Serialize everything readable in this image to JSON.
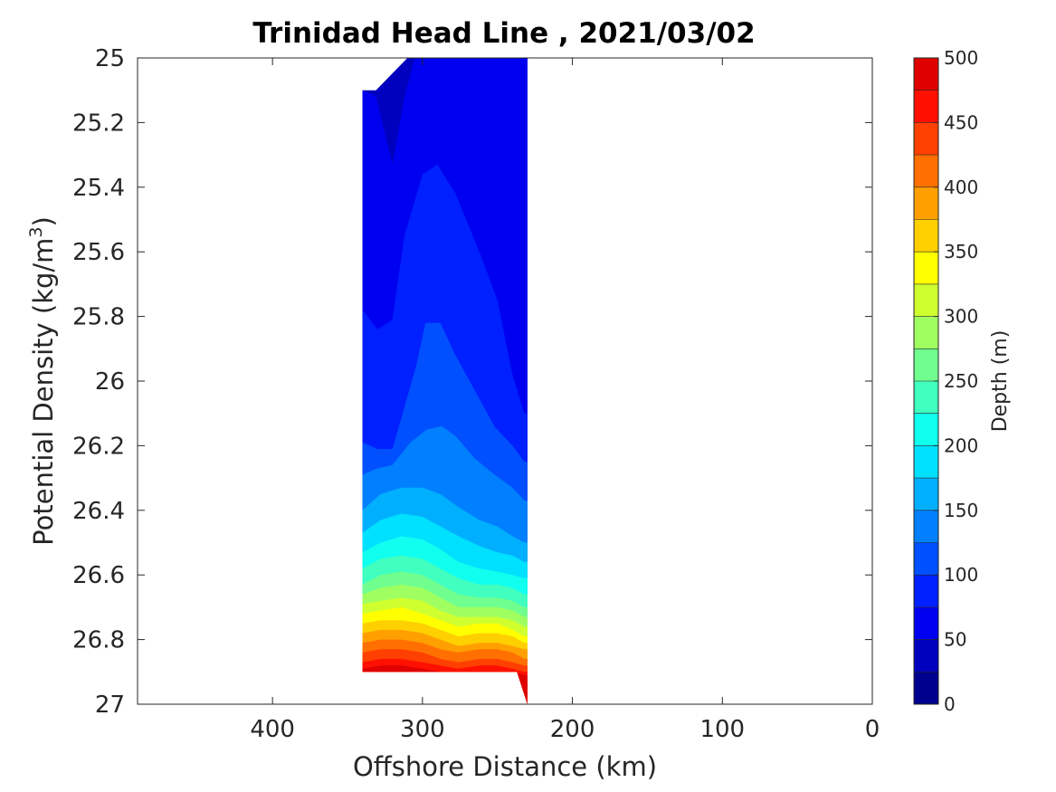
{
  "chart_data": {
    "type": "contour",
    "title": "Trinidad Head Line , 2021/03/02",
    "xlabel": "Offshore Distance (km)",
    "ylabel": "Potential Density (kg/m",
    "ylabel_sup": "3",
    "ylabel_end": ")",
    "xlim": [
      490,
      0
    ],
    "x_reversed": true,
    "ylim": [
      25,
      27
    ],
    "y_reversed": true,
    "x_ticks": [
      400,
      300,
      200,
      100,
      0
    ],
    "x_tick_labels": [
      "400",
      "300",
      "200",
      "100",
      "0"
    ],
    "y_ticks": [
      25,
      25.2,
      25.4,
      25.6,
      25.8,
      26,
      26.2,
      26.4,
      26.6,
      26.8,
      27
    ],
    "y_tick_labels": [
      "25",
      "25.2",
      "25.4",
      "25.6",
      "25.8",
      "26",
      "26.2",
      "26.4",
      "26.6",
      "26.8",
      "27"
    ],
    "grid": false,
    "colorbar": {
      "label": "Depth (m)",
      "colormap": "jet",
      "levels": [
        0,
        25,
        50,
        75,
        100,
        125,
        150,
        175,
        200,
        225,
        250,
        275,
        300,
        325,
        350,
        375,
        400,
        425,
        450,
        475,
        500
      ],
      "colors": [
        "#00008f",
        "#0000bf",
        "#0000f0",
        "#0020ff",
        "#0050ff",
        "#0080ff",
        "#00b0ff",
        "#00e0ff",
        "#10ffef",
        "#40ffbf",
        "#70ff8f",
        "#a0ff60",
        "#d0ff30",
        "#ffff00",
        "#ffd000",
        "#ffa000",
        "#ff7000",
        "#ff4000",
        "#ff1000",
        "#df0000",
        "#af0000"
      ],
      "tick_values": [
        0,
        50,
        100,
        150,
        200,
        250,
        300,
        350,
        400,
        450,
        500
      ],
      "tick_labels": [
        "0",
        "50",
        "100",
        "150",
        "200",
        "250",
        "300",
        "350",
        "400",
        "450",
        "500"
      ]
    },
    "data_extent": {
      "x_range_km": [
        230,
        340
      ],
      "sigma_range": [
        25,
        27
      ]
    },
    "depth_contours": [
      {
        "depth": 50,
        "points": [
          [
            340,
            25.1
          ],
          [
            331,
            25.12
          ],
          [
            320,
            25.33
          ],
          [
            312,
            25.12
          ],
          [
            305,
            25.0
          ]
        ]
      },
      {
        "depth": 75,
        "points": [
          [
            340,
            25.78
          ],
          [
            330,
            25.84
          ],
          [
            320,
            25.81
          ],
          [
            312,
            25.55
          ],
          [
            300,
            25.36
          ],
          [
            290,
            25.33
          ],
          [
            278,
            25.42
          ],
          [
            262,
            25.6
          ],
          [
            250,
            25.75
          ],
          [
            240,
            25.98
          ],
          [
            232,
            26.1
          ]
        ]
      },
      {
        "depth": 100,
        "points": [
          [
            340,
            26.19
          ],
          [
            330,
            26.21
          ],
          [
            320,
            26.21
          ],
          [
            312,
            26.08
          ],
          [
            304,
            25.95
          ],
          [
            298,
            25.82
          ],
          [
            288,
            25.82
          ],
          [
            278,
            25.92
          ],
          [
            265,
            26.03
          ],
          [
            252,
            26.14
          ],
          [
            240,
            26.2
          ],
          [
            232,
            26.25
          ]
        ]
      },
      {
        "depth": 125,
        "points": [
          [
            340,
            26.29
          ],
          [
            330,
            26.27
          ],
          [
            320,
            26.26
          ],
          [
            308,
            26.19
          ],
          [
            297,
            26.15
          ],
          [
            287,
            26.14
          ],
          [
            278,
            26.17
          ],
          [
            265,
            26.24
          ],
          [
            252,
            26.29
          ],
          [
            240,
            26.33
          ],
          [
            232,
            26.37
          ]
        ]
      },
      {
        "depth": 150,
        "points": [
          [
            340,
            26.4
          ],
          [
            328,
            26.35
          ],
          [
            314,
            26.33
          ],
          [
            300,
            26.33
          ],
          [
            288,
            26.35
          ],
          [
            276,
            26.39
          ],
          [
            262,
            26.43
          ],
          [
            250,
            26.45
          ],
          [
            240,
            26.48
          ],
          [
            232,
            26.5
          ]
        ]
      },
      {
        "depth": 175,
        "points": [
          [
            340,
            26.47
          ],
          [
            328,
            26.43
          ],
          [
            314,
            26.41
          ],
          [
            300,
            26.42
          ],
          [
            288,
            26.45
          ],
          [
            276,
            26.48
          ],
          [
            262,
            26.51
          ],
          [
            250,
            26.53
          ],
          [
            240,
            26.54
          ],
          [
            232,
            26.56
          ]
        ]
      },
      {
        "depth": 200,
        "points": [
          [
            340,
            26.53
          ],
          [
            328,
            26.5
          ],
          [
            314,
            26.48
          ],
          [
            300,
            26.49
          ],
          [
            288,
            26.52
          ],
          [
            276,
            26.56
          ],
          [
            262,
            26.58
          ],
          [
            250,
            26.59
          ],
          [
            240,
            26.6
          ],
          [
            232,
            26.61
          ]
        ]
      },
      {
        "depth": 225,
        "points": [
          [
            340,
            26.58
          ],
          [
            328,
            26.55
          ],
          [
            314,
            26.54
          ],
          [
            300,
            26.55
          ],
          [
            288,
            26.58
          ],
          [
            276,
            26.61
          ],
          [
            262,
            26.63
          ],
          [
            250,
            26.63
          ],
          [
            240,
            26.64
          ],
          [
            232,
            26.66
          ]
        ]
      },
      {
        "depth": 250,
        "points": [
          [
            340,
            26.63
          ],
          [
            328,
            26.6
          ],
          [
            314,
            26.59
          ],
          [
            300,
            26.6
          ],
          [
            288,
            26.63
          ],
          [
            276,
            26.66
          ],
          [
            262,
            26.67
          ],
          [
            250,
            26.67
          ],
          [
            240,
            26.68
          ],
          [
            232,
            26.7
          ]
        ]
      },
      {
        "depth": 275,
        "points": [
          [
            340,
            26.66
          ],
          [
            328,
            26.64
          ],
          [
            314,
            26.63
          ],
          [
            300,
            26.64
          ],
          [
            288,
            26.67
          ],
          [
            276,
            26.7
          ],
          [
            262,
            26.7
          ],
          [
            250,
            26.7
          ],
          [
            240,
            26.71
          ],
          [
            232,
            26.73
          ]
        ]
      },
      {
        "depth": 300,
        "points": [
          [
            340,
            26.69
          ],
          [
            328,
            26.68
          ],
          [
            314,
            26.67
          ],
          [
            300,
            26.68
          ],
          [
            288,
            26.71
          ],
          [
            276,
            26.73
          ],
          [
            262,
            26.73
          ],
          [
            250,
            26.73
          ],
          [
            240,
            26.74
          ],
          [
            232,
            26.76
          ]
        ]
      },
      {
        "depth": 325,
        "points": [
          [
            340,
            26.72
          ],
          [
            328,
            26.71
          ],
          [
            314,
            26.7
          ],
          [
            300,
            26.72
          ],
          [
            288,
            26.74
          ],
          [
            276,
            26.76
          ],
          [
            262,
            26.75
          ],
          [
            250,
            26.75
          ],
          [
            240,
            26.77
          ],
          [
            232,
            26.79
          ]
        ]
      },
      {
        "depth": 350,
        "points": [
          [
            340,
            26.75
          ],
          [
            328,
            26.74
          ],
          [
            314,
            26.74
          ],
          [
            300,
            26.75
          ],
          [
            288,
            26.77
          ],
          [
            276,
            26.79
          ],
          [
            262,
            26.78
          ],
          [
            250,
            26.78
          ],
          [
            240,
            26.79
          ],
          [
            232,
            26.81
          ]
        ]
      },
      {
        "depth": 375,
        "points": [
          [
            340,
            26.78
          ],
          [
            328,
            26.77
          ],
          [
            314,
            26.77
          ],
          [
            300,
            26.78
          ],
          [
            288,
            26.8
          ],
          [
            276,
            26.82
          ],
          [
            262,
            26.81
          ],
          [
            250,
            26.81
          ],
          [
            240,
            26.82
          ],
          [
            232,
            26.83
          ]
        ]
      },
      {
        "depth": 400,
        "points": [
          [
            340,
            26.81
          ],
          [
            328,
            26.8
          ],
          [
            314,
            26.8
          ],
          [
            300,
            26.81
          ],
          [
            288,
            26.83
          ],
          [
            276,
            26.84
          ],
          [
            262,
            26.83
          ],
          [
            250,
            26.83
          ],
          [
            240,
            26.84
          ],
          [
            232,
            26.86
          ]
        ]
      },
      {
        "depth": 425,
        "points": [
          [
            340,
            26.84
          ],
          [
            328,
            26.83
          ],
          [
            314,
            26.83
          ],
          [
            300,
            26.84
          ],
          [
            288,
            26.86
          ],
          [
            276,
            26.87
          ],
          [
            262,
            26.86
          ],
          [
            250,
            26.86
          ],
          [
            240,
            26.87
          ],
          [
            232,
            26.88
          ]
        ]
      },
      {
        "depth": 450,
        "points": [
          [
            340,
            26.87
          ],
          [
            328,
            26.86
          ],
          [
            314,
            26.86
          ],
          [
            300,
            26.87
          ],
          [
            288,
            26.88
          ],
          [
            276,
            26.89
          ],
          [
            262,
            26.88
          ],
          [
            250,
            26.88
          ],
          [
            240,
            26.89
          ],
          [
            232,
            26.9
          ]
        ]
      },
      {
        "depth": 475,
        "points": [
          [
            340,
            26.89
          ],
          [
            328,
            26.88
          ],
          [
            314,
            26.88
          ],
          [
            300,
            26.89
          ],
          [
            288,
            26.9
          ],
          [
            276,
            26.9
          ],
          [
            262,
            26.9
          ],
          [
            250,
            26.9
          ],
          [
            240,
            26.9
          ],
          [
            232,
            26.91
          ]
        ]
      }
    ]
  }
}
